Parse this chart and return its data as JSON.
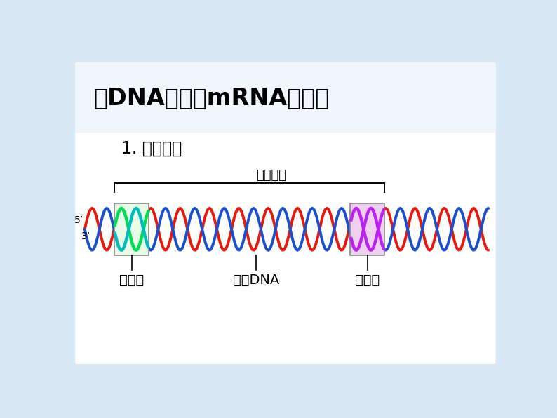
{
  "bg_color": "#d8e8f4",
  "white_box_color": "#ffffff",
  "title_text": "以DNA转录成mRNA为例：",
  "subtitle_text": "1. 转录单位",
  "bracket_label": "转录单位",
  "label_promoter": "启动子",
  "label_gene": "基因DNA",
  "label_terminator": "终止子",
  "label_5": "5’",
  "label_3": "3’",
  "dna_red_color": "#e8180c",
  "dna_blue_color": "#1a4fcf",
  "promoter_green_color": "#00dd55",
  "promoter_teal_color": "#00bbbb",
  "terminator_purple_color": "#bb22ee",
  "promoter_box_fill": "#e8fce8",
  "promoter_box_edge": "#888888",
  "terminator_box_fill": "#f0d0f0",
  "terminator_box_edge": "#888888",
  "title_fontsize": 24,
  "subtitle_fontsize": 17,
  "label_fontsize": 14,
  "bracket_fontsize": 13,
  "prime_fontsize": 10
}
